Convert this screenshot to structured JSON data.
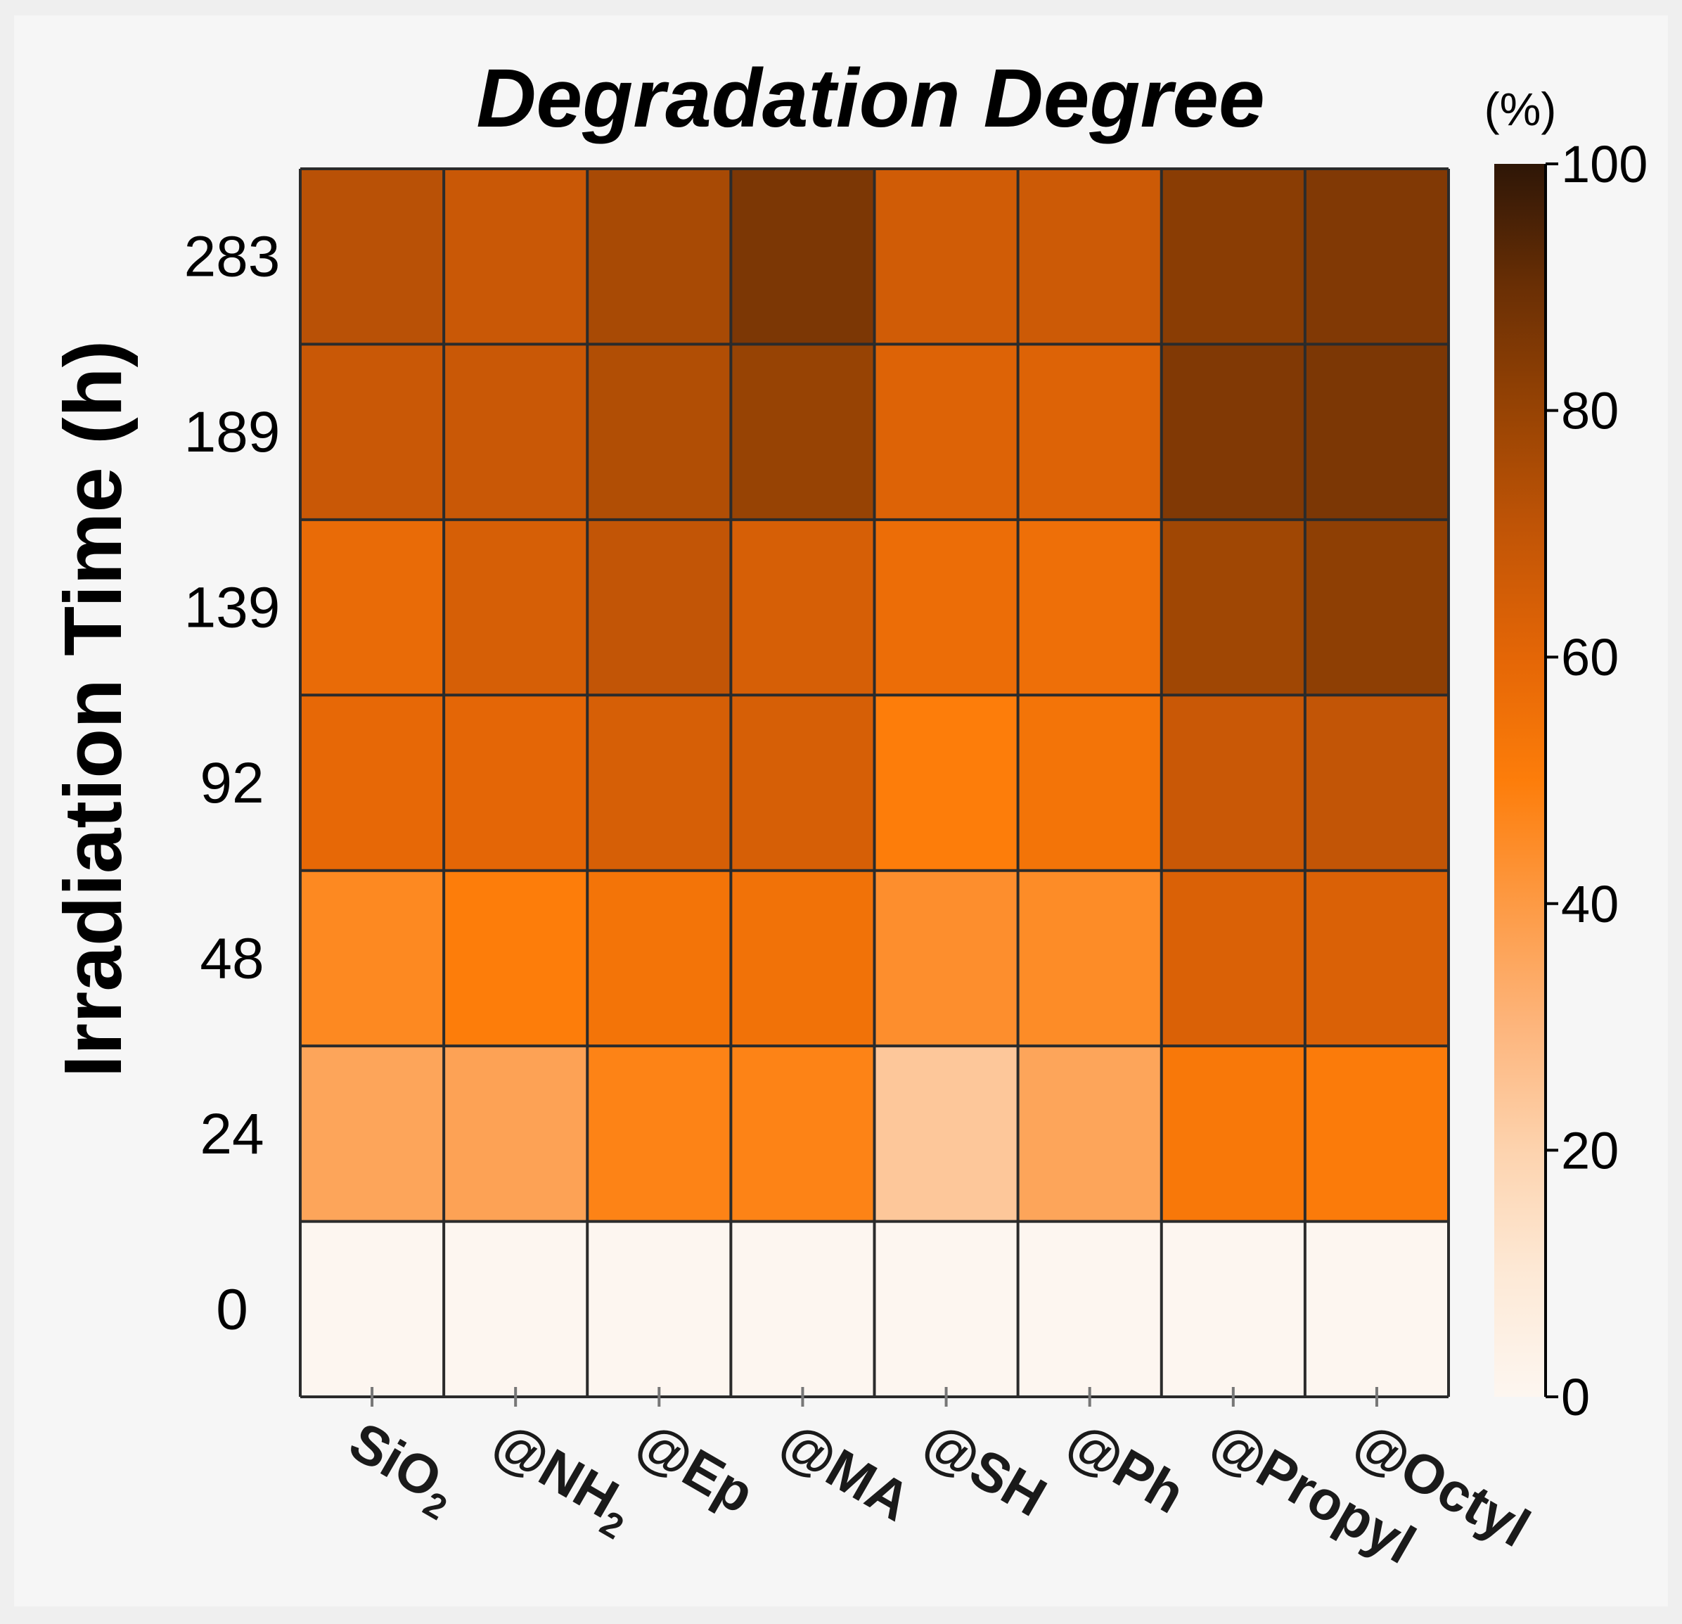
{
  "chart_data": {
    "type": "heatmap",
    "title": "Degradation Degree",
    "ylabel": "Irradiation Time (h)",
    "xlabel": "",
    "colorbar_unit": "(%)",
    "colorbar_ticks": [
      "100",
      "80",
      "60",
      "40",
      "20",
      "0"
    ],
    "colorbar_range": [
      0,
      100
    ],
    "x_categories": [
      {
        "base": "SiO",
        "sub": "2"
      },
      {
        "base": "@NH",
        "sub": "2"
      },
      {
        "base": "@Ep",
        "sub": ""
      },
      {
        "base": "@MA",
        "sub": ""
      },
      {
        "base": "@SH",
        "sub": ""
      },
      {
        "base": "@Ph",
        "sub": ""
      },
      {
        "base": "@Propyl",
        "sub": ""
      },
      {
        "base": "@Octyl",
        "sub": ""
      }
    ],
    "y_categories": [
      "283",
      "189",
      "139",
      "92",
      "48",
      "24",
      "0"
    ],
    "values": [
      [
        72,
        68,
        76,
        86,
        66,
        67,
        83,
        85
      ],
      [
        68,
        68,
        74,
        80,
        62,
        62,
        85,
        86
      ],
      [
        58,
        64,
        70,
        64,
        57,
        56,
        78,
        82
      ],
      [
        59,
        60,
        64,
        64,
        50,
        54,
        68,
        70
      ],
      [
        46,
        50,
        54,
        55,
        44,
        45,
        63,
        63
      ],
      [
        36,
        37,
        48,
        48,
        24,
        36,
        52,
        51
      ],
      [
        0,
        0,
        0,
        0,
        0,
        0,
        0,
        0
      ]
    ],
    "colormap": [
      [
        0,
        "#fdf6f0"
      ],
      [
        10,
        "#fde9d6"
      ],
      [
        20,
        "#fdd3ae"
      ],
      [
        30,
        "#fdb57c"
      ],
      [
        40,
        "#fd9a44"
      ],
      [
        50,
        "#fd7d0a"
      ],
      [
        60,
        "#e46606"
      ],
      [
        70,
        "#c25506"
      ],
      [
        80,
        "#974304"
      ],
      [
        90,
        "#6a2f05"
      ],
      [
        100,
        "#2e1606"
      ]
    ]
  }
}
